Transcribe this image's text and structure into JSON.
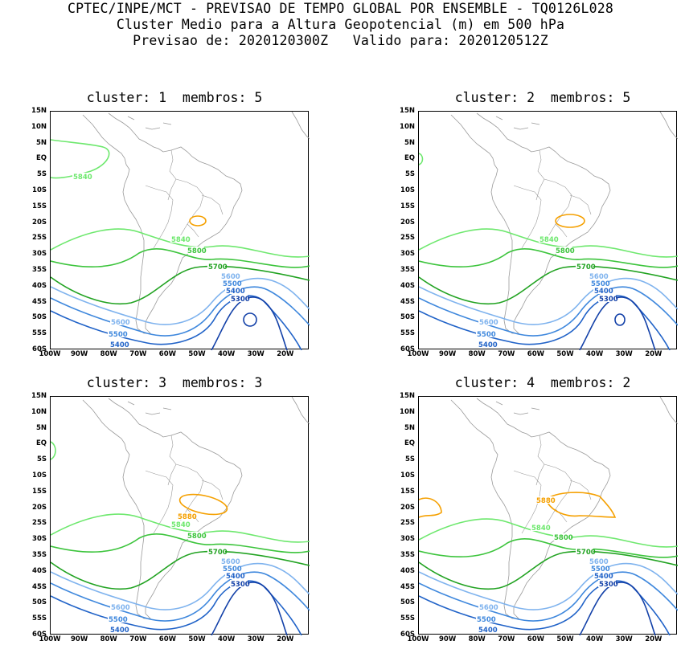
{
  "header": {
    "line1": "CPTEC/INPE/MCT - PREVISAO DE TEMPO GLOBAL POR ENSEMBLE - TQ0126L028",
    "line2": "Cluster Medio para a Altura Geopotencial (m) em 500 hPa",
    "line3": "Previsao de: 2020120300Z   Valido para: 2020120512Z"
  },
  "lat_labels": [
    "15N",
    "10N",
    "5N",
    "EQ",
    "5S",
    "10S",
    "15S",
    "20S",
    "25S",
    "30S",
    "35S",
    "40S",
    "45S",
    "50S",
    "55S",
    "60S"
  ],
  "lon_labels": [
    "100W",
    "90W",
    "80W",
    "70W",
    "60W",
    "50W",
    "40W",
    "30W",
    "20W"
  ],
  "colors": {
    "c5880": "#f5a000",
    "c5840": "#6ee86e",
    "c5800": "#3cc43c",
    "c5700": "#22a322",
    "c5600": "#7fb3ee",
    "c5500": "#3f88dd",
    "c5400": "#2163c8",
    "c5300": "#1240a8",
    "coast": "#9a9a9a"
  },
  "panels": [
    {
      "title": "cluster: 1  membros: 5",
      "labels": {
        "l5840a": "5840",
        "l5840b": "5840",
        "l5800": "5800",
        "l5700": "5700",
        "l5600a": "5600",
        "l5500a": "5500",
        "l5400a": "5400",
        "l5300": "5300",
        "l5600b": "5600",
        "l5500b": "5500",
        "l5400b": "5400"
      }
    },
    {
      "title": "cluster: 2  membros: 5",
      "labels": {
        "l5840b": "5840",
        "l5800": "5800",
        "l5700": "5700",
        "l5600a": "5600",
        "l5500a": "5500",
        "l5400a": "5400",
        "l5300": "5300",
        "l5600b": "5600",
        "l5500b": "5500",
        "l5400b": "5400"
      }
    },
    {
      "title": "cluster: 3  membros: 3",
      "labels": {
        "l5880": "5880",
        "l5840b": "5840",
        "l5800": "5800",
        "l5700": "5700",
        "l5600a": "5600",
        "l5500a": "5500",
        "l5400a": "5400",
        "l5300": "5300",
        "l5600b": "5600",
        "l5500b": "5500",
        "l5400b": "5400"
      }
    },
    {
      "title": "cluster: 4  membros: 2",
      "labels": {
        "l5880": "5880",
        "l5840b": "5840",
        "l5800": "5800",
        "l5700": "5700",
        "l5600a": "5600",
        "l5500a": "5500",
        "l5400a": "5400",
        "l5300": "5300",
        "l5600b": "5600",
        "l5500b": "5500",
        "l5400b": "5400"
      }
    }
  ]
}
